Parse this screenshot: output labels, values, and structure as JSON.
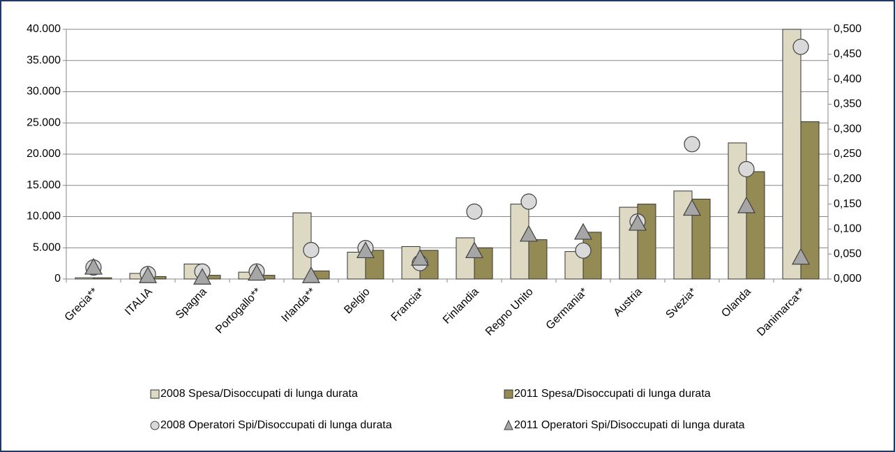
{
  "chart_data": {
    "type": "bar",
    "categories": [
      "Grecia**",
      "ITALIA",
      "Spagna",
      "Portogallo**",
      "Irlanda**",
      "Belgio",
      "Francia*",
      "Finlandia",
      "Regno Unito",
      "Germania*",
      "Austria",
      "Svezia*",
      "Olanda",
      "Danimarca**"
    ],
    "series": [
      {
        "name": "2008 Spesa/Disoccupati di lunga durata",
        "type": "bar",
        "color": "#ddd9c3",
        "values": [
          200,
          900,
          2400,
          1100,
          10600,
          4300,
          5200,
          6600,
          12000,
          4400,
          11500,
          14100,
          21800,
          40000
        ]
      },
      {
        "name": "2011 Spesa/Disoccupati di lunga durata",
        "type": "bar",
        "color": "#948a54",
        "values": [
          200,
          400,
          600,
          600,
          1300,
          4600,
          4600,
          5000,
          6300,
          7500,
          12000,
          12800,
          17200,
          25200
        ]
      },
      {
        "name": "2008 Operatori Spi/Disoccupati di lunga durata",
        "type": "scatter",
        "marker": "circle",
        "axis": "y2",
        "color": "#d9d9d9",
        "values": [
          0.023,
          0.01,
          0.015,
          0.015,
          0.058,
          0.062,
          0.032,
          0.135,
          0.155,
          0.057,
          0.115,
          0.27,
          0.22,
          0.465
        ]
      },
      {
        "name": "2011 Operatori Spi/Disoccupati di lunga durata",
        "type": "scatter",
        "marker": "triangle",
        "axis": "y2",
        "color": "#a6a6a6",
        "values": [
          0.022,
          0.005,
          0.002,
          0.01,
          0.005,
          0.055,
          0.04,
          0.055,
          0.088,
          0.092,
          0.11,
          0.14,
          0.145,
          0.042
        ]
      }
    ],
    "ylim": [
      0,
      40000
    ],
    "yticks": [
      0,
      {
        "value": 5000,
        "label": "5.000"
      },
      {
        "value": 10000,
        "label": "10.000"
      },
      {
        "value": 15000,
        "label": "15.000"
      },
      {
        "value": 20000,
        "label": "20.000"
      },
      {
        "value": 25000,
        "label": "25.000"
      },
      {
        "value": 30000,
        "label": "30.000"
      },
      {
        "value": 35000,
        "label": "35.000"
      },
      {
        "value": 40000,
        "label": "40.000"
      }
    ],
    "y2lim": [
      0,
      0.5
    ],
    "y2ticks": [
      {
        "value": 0,
        "label": "0,000"
      },
      {
        "value": 0.05,
        "label": "0,050"
      },
      {
        "value": 0.1,
        "label": "0,100"
      },
      {
        "value": 0.15,
        "label": "0,150"
      },
      {
        "value": 0.2,
        "label": "0,200"
      },
      {
        "value": 0.25,
        "label": "0,250"
      },
      {
        "value": 0.3,
        "label": "0,300"
      },
      {
        "value": 0.35,
        "label": "0,350"
      },
      {
        "value": 0.4,
        "label": "0,400"
      },
      {
        "value": 0.45,
        "label": "0,450"
      },
      {
        "value": 0.5,
        "label": "0,500"
      }
    ],
    "grid": true
  }
}
